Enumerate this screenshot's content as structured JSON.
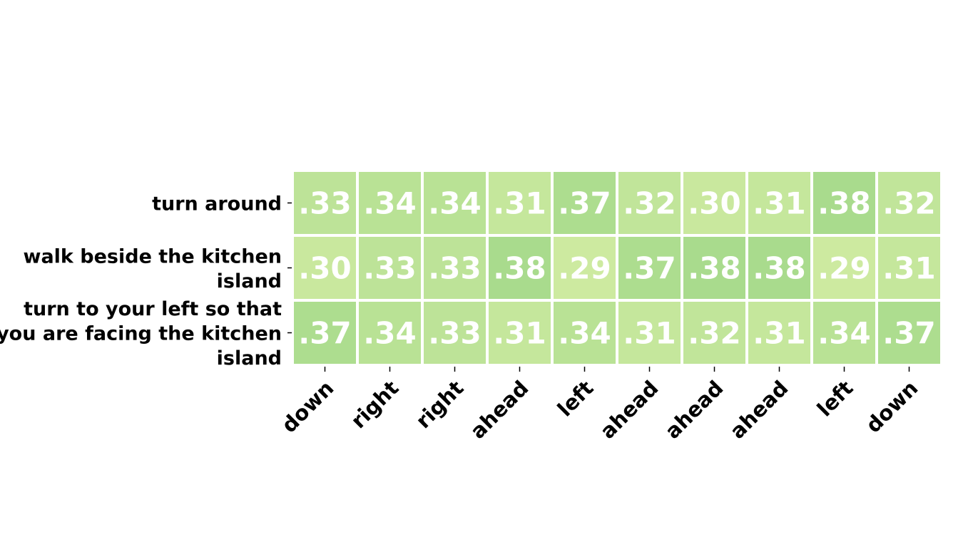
{
  "chart_data": {
    "type": "heatmap",
    "rows": [
      [
        "turn around"
      ],
      [
        "walk beside the kitchen",
        "island"
      ],
      [
        "turn to your left so that",
        "you are facing the kitchen",
        "island"
      ]
    ],
    "columns": [
      "down",
      "right",
      "right",
      "ahead",
      "left",
      "ahead",
      "ahead",
      "ahead",
      "left",
      "down"
    ],
    "values": [
      [
        0.33,
        0.34,
        0.34,
        0.31,
        0.37,
        0.32,
        0.3,
        0.31,
        0.38,
        0.32
      ],
      [
        0.3,
        0.33,
        0.33,
        0.38,
        0.29,
        0.37,
        0.38,
        0.38,
        0.29,
        0.31
      ],
      [
        0.37,
        0.34,
        0.33,
        0.31,
        0.34,
        0.31,
        0.32,
        0.31,
        0.34,
        0.37
      ]
    ],
    "cell_labels": [
      [
        ".33",
        ".34",
        ".34",
        ".31",
        ".37",
        ".32",
        ".30",
        ".31",
        ".38",
        ".32"
      ],
      [
        ".30",
        ".33",
        ".33",
        ".38",
        ".29",
        ".37",
        ".38",
        ".38",
        ".29",
        ".31"
      ],
      [
        ".37",
        ".34",
        ".33",
        ".31",
        ".34",
        ".31",
        ".32",
        ".31",
        ".34",
        ".37"
      ]
    ],
    "color_scale": {
      "min_value": 0.29,
      "max_value": 0.38,
      "min_color": "#cdeaa0",
      "max_color": "#a9db8d"
    },
    "title": "",
    "xlabel": "",
    "ylabel": "",
    "grid": false,
    "legend": "none"
  }
}
